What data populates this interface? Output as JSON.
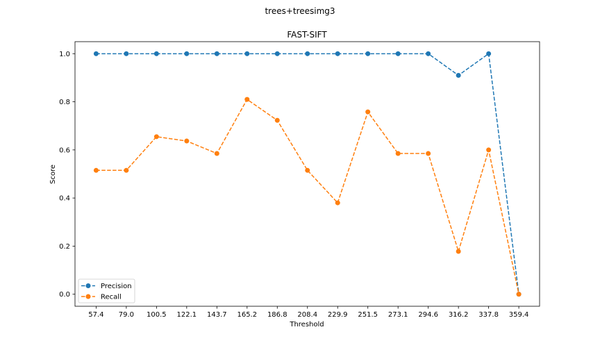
{
  "chart_data": {
    "type": "line",
    "suptitle": "trees+treesimg3",
    "title": "FAST-SIFT",
    "xlabel": "Threshold",
    "ylabel": "Score",
    "categories": [
      "57.4",
      "79.0",
      "100.5",
      "122.1",
      "143.7",
      "165.2",
      "186.8",
      "208.4",
      "229.9",
      "251.5",
      "273.1",
      "294.6",
      "316.2",
      "337.8",
      "359.4"
    ],
    "ylim": [
      -0.05,
      1.05
    ],
    "yticks": [
      0.0,
      0.2,
      0.4,
      0.6,
      0.8,
      1.0
    ],
    "ytick_labels": [
      "0.0",
      "0.2",
      "0.4",
      "0.6",
      "0.8",
      "1.0"
    ],
    "grid": false,
    "legend_position": "lower-left",
    "series": [
      {
        "name": "Precision",
        "color": "#1f77b4",
        "linestyle": "dashed",
        "marker": "circle",
        "values": [
          1.0,
          1.0,
          1.0,
          1.0,
          1.0,
          1.0,
          1.0,
          1.0,
          1.0,
          1.0,
          1.0,
          1.0,
          0.91,
          1.0,
          0.0
        ]
      },
      {
        "name": "Recall",
        "color": "#ff7f0e",
        "linestyle": "dashed",
        "marker": "circle",
        "values": [
          0.515,
          0.515,
          0.655,
          0.637,
          0.585,
          0.81,
          0.723,
          0.515,
          0.38,
          0.758,
          0.585,
          0.585,
          0.178,
          0.6,
          0.0
        ]
      }
    ]
  }
}
